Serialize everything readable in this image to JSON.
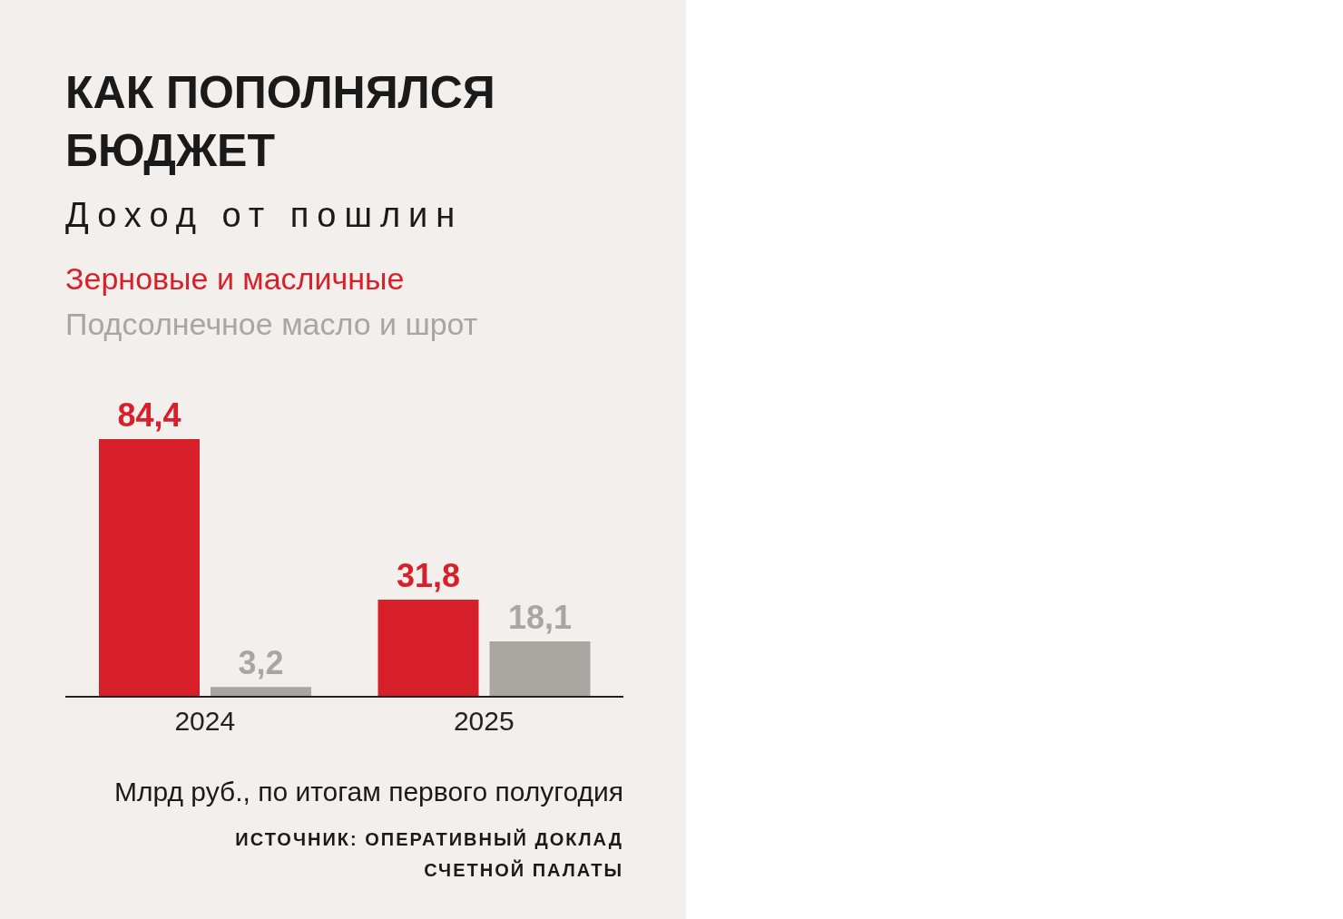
{
  "chart_data": {
    "type": "bar",
    "title": "КАК ПОПОЛНЯЛСЯ БЮДЖЕТ",
    "subtitle": "Доход от пошлин",
    "categories": [
      "2024",
      "2025"
    ],
    "series": [
      {
        "name": "Зерновые и масличные",
        "color": "#d7202a",
        "values": [
          84.4,
          31.8
        ],
        "value_labels": [
          "84,4",
          "31,8"
        ]
      },
      {
        "name": "Подсолнечное масло и шрот",
        "color": "#a9a5a1",
        "values": [
          3.2,
          18.1
        ],
        "value_labels": [
          "3,2",
          "18,1"
        ]
      }
    ],
    "legend": "top left",
    "annotations": [
      "Млрд руб., по итогам первого полугодия",
      "ИСТОЧНИК: ОПЕРАТИВНЫЙ ДОКЛАД СЧЕТНОЙ ПАЛАТЫ"
    ]
  }
}
